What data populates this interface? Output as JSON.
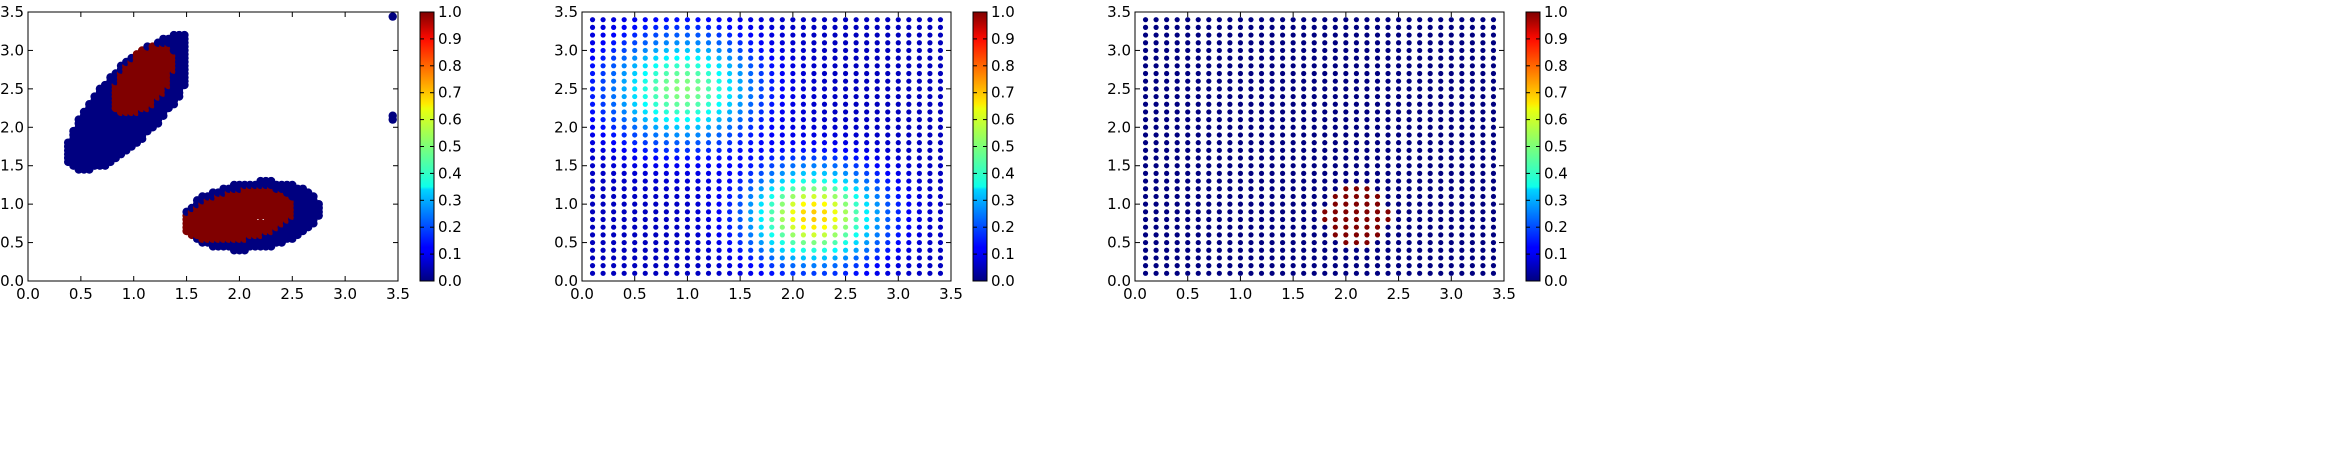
{
  "chart_data": [
    {
      "type": "scatter",
      "description_hint": "binary cluster membership",
      "xlim": [
        0.0,
        3.5
      ],
      "ylim": [
        0.0,
        3.5
      ],
      "xticks": [
        "0.0",
        "0.5",
        "1.0",
        "1.5",
        "2.0",
        "2.5",
        "3.0",
        "3.5"
      ],
      "yticks": [
        "0.0",
        "0.5",
        "1.0",
        "1.5",
        "2.0",
        "2.5",
        "3.0",
        "3.5"
      ],
      "colorbar": {
        "range": [
          0.0,
          1.0
        ],
        "ticks": [
          "0.0",
          "0.1",
          "0.2",
          "0.3",
          "0.4",
          "0.5",
          "0.6",
          "0.7",
          "0.8",
          "0.9",
          "1.0"
        ],
        "colormap": "jet"
      },
      "regions": [
        {
          "shape": "blob",
          "center": [
            0.95,
            2.3
          ],
          "value": 0.0,
          "extent": "upper-left elongated cluster, x 0.4–1.45, y 1.35–3.2"
        },
        {
          "shape": "blob",
          "center": [
            1.1,
            2.65
          ],
          "value": 1.0,
          "extent": "red core, x 0.7–1.4, y 2.15–3.05"
        },
        {
          "shape": "blob",
          "center": [
            2.1,
            0.85
          ],
          "value": 0.0,
          "extent": "lower-right cluster, x 1.45–2.7, y 0.35–1.35"
        },
        {
          "shape": "blob",
          "center": [
            2.0,
            0.85
          ],
          "value": 1.0,
          "extent": "red core, x 1.45–2.6, y 0.45–1.25, hole near (2.18, 0.8)"
        }
      ],
      "points": [
        {
          "x": 3.45,
          "y": 3.44,
          "value": 0.0
        },
        {
          "x": 3.45,
          "y": 2.15,
          "value": 0.0
        },
        {
          "x": 3.45,
          "y": 2.1,
          "value": 0.0
        }
      ]
    },
    {
      "type": "scatter",
      "description_hint": "regular grid with smooth density field",
      "xlim": [
        0.0,
        3.5
      ],
      "ylim": [
        0.0,
        3.5
      ],
      "xticks": [
        "0.0",
        "0.5",
        "1.0",
        "1.5",
        "2.0",
        "2.5",
        "3.0",
        "3.5"
      ],
      "yticks": [
        "0.0",
        "0.5",
        "1.0",
        "1.5",
        "2.0",
        "2.5",
        "3.0",
        "3.5"
      ],
      "colorbar": {
        "range": [
          0.0,
          1.0
        ],
        "ticks": [
          "0.0",
          "0.1",
          "0.2",
          "0.3",
          "0.4",
          "0.5",
          "0.6",
          "0.7",
          "0.8",
          "0.9",
          "1.0"
        ],
        "colormap": "jet"
      },
      "grid": {
        "x_start": 0.1,
        "x_step": 0.1,
        "x_count": 34,
        "y_start": 0.1,
        "y_step": 0.1,
        "y_count": 34
      },
      "field": [
        {
          "center": [
            2.2,
            0.85
          ],
          "peak": 0.62,
          "sigma": 0.42
        },
        {
          "center": [
            0.95,
            2.5
          ],
          "peak": 0.45,
          "sigma": 0.48
        }
      ]
    },
    {
      "type": "scatter",
      "description_hint": "regular grid with thresholded region",
      "xlim": [
        0.0,
        3.5
      ],
      "ylim": [
        0.0,
        3.5
      ],
      "xticks": [
        "0.0",
        "0.5",
        "1.0",
        "1.5",
        "2.0",
        "2.5",
        "3.0",
        "3.5"
      ],
      "yticks": [
        "0.0",
        "0.5",
        "1.0",
        "1.5",
        "2.0",
        "2.5",
        "3.0",
        "3.5"
      ],
      "colorbar": {
        "range": [
          0.0,
          1.0
        ],
        "ticks": [
          "0.0",
          "0.1",
          "0.2",
          "0.3",
          "0.4",
          "0.5",
          "0.6",
          "0.7",
          "0.8",
          "0.9",
          "1.0"
        ],
        "colormap": "jet"
      },
      "grid": {
        "x_start": 0.1,
        "x_step": 0.1,
        "x_count": 34,
        "y_start": 0.1,
        "y_step": 0.1,
        "y_count": 34
      },
      "high_region": {
        "center": [
          2.1,
          0.85
        ],
        "rx": 0.32,
        "ry": 0.38,
        "value": 1.0
      }
    }
  ]
}
